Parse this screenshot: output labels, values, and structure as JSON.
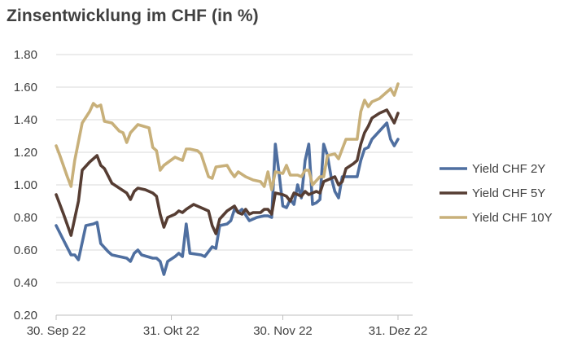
{
  "chart_data": {
    "type": "line",
    "title": "Zinsentwicklung im CHF (in %)",
    "xlabel": "",
    "ylabel": "",
    "x_ticks": [
      "30. Sep 22",
      "31. Okt 22",
      "30. Nov 22",
      "31. Dez 22"
    ],
    "y_ticks": [
      "0.20",
      "0.40",
      "0.60",
      "0.80",
      "1.00",
      "1.20",
      "1.40",
      "1.60",
      "1.80"
    ],
    "ylim": [
      0.2,
      1.8
    ],
    "xlim": [
      "2022-09-30",
      "2022-12-31"
    ],
    "grid": "horizontal",
    "legend_position": "right",
    "series": [
      {
        "name": "Yield CHF 2Y",
        "color": "#4f6fa0",
        "points": [
          [
            "2022-09-30",
            0.75
          ],
          [
            "2022-10-02",
            0.66
          ],
          [
            "2022-10-04",
            0.57
          ],
          [
            "2022-10-05",
            0.57
          ],
          [
            "2022-10-06",
            0.54
          ],
          [
            "2022-10-08",
            0.75
          ],
          [
            "2022-10-10",
            0.76
          ],
          [
            "2022-10-11",
            0.77
          ],
          [
            "2022-10-12",
            0.64
          ],
          [
            "2022-10-14",
            0.59
          ],
          [
            "2022-10-15",
            0.57
          ],
          [
            "2022-10-17",
            0.56
          ],
          [
            "2022-10-19",
            0.55
          ],
          [
            "2022-10-20",
            0.53
          ],
          [
            "2022-10-21",
            0.58
          ],
          [
            "2022-10-22",
            0.6
          ],
          [
            "2022-10-23",
            0.57
          ],
          [
            "2022-10-26",
            0.55
          ],
          [
            "2022-10-27",
            0.55
          ],
          [
            "2022-10-28",
            0.53
          ],
          [
            "2022-10-29",
            0.45
          ],
          [
            "2022-10-30",
            0.53
          ],
          [
            "2022-11-01",
            0.56
          ],
          [
            "2022-11-02",
            0.58
          ],
          [
            "2022-11-03",
            0.56
          ],
          [
            "2022-11-04",
            0.76
          ],
          [
            "2022-11-05",
            0.58
          ],
          [
            "2022-11-08",
            0.57
          ],
          [
            "2022-11-09",
            0.56
          ],
          [
            "2022-11-11",
            0.62
          ],
          [
            "2022-11-12",
            0.61
          ],
          [
            "2022-11-13",
            0.75
          ],
          [
            "2022-11-15",
            0.76
          ],
          [
            "2022-11-16",
            0.78
          ],
          [
            "2022-11-17",
            0.85
          ],
          [
            "2022-11-18",
            0.83
          ],
          [
            "2022-11-19",
            0.85
          ],
          [
            "2022-11-21",
            0.78
          ],
          [
            "2022-11-23",
            0.8
          ],
          [
            "2022-11-25",
            0.81
          ],
          [
            "2022-11-26",
            0.81
          ],
          [
            "2022-11-27",
            0.8
          ],
          [
            "2022-11-28",
            1.25
          ],
          [
            "2022-11-29",
            1.07
          ],
          [
            "2022-11-30",
            0.87
          ],
          [
            "2022-12-01",
            0.86
          ],
          [
            "2022-12-02",
            0.91
          ],
          [
            "2022-12-03",
            0.88
          ],
          [
            "2022-12-04",
            1.0
          ],
          [
            "2022-12-05",
            0.92
          ],
          [
            "2022-12-06",
            1.15
          ],
          [
            "2022-12-07",
            1.25
          ],
          [
            "2022-12-08",
            0.88
          ],
          [
            "2022-12-09",
            0.89
          ],
          [
            "2022-12-10",
            0.91
          ],
          [
            "2022-12-11",
            1.25
          ],
          [
            "2022-12-12",
            1.18
          ],
          [
            "2022-12-13",
            1.05
          ],
          [
            "2022-12-14",
            0.96
          ],
          [
            "2022-12-15",
            0.92
          ],
          [
            "2022-12-16",
            1.05
          ],
          [
            "2022-12-17",
            1.05
          ],
          [
            "2022-12-19",
            1.05
          ],
          [
            "2022-12-20",
            1.05
          ],
          [
            "2022-12-21",
            1.15
          ],
          [
            "2022-12-22",
            1.22
          ],
          [
            "2022-12-23",
            1.23
          ],
          [
            "2022-12-24",
            1.28
          ],
          [
            "2022-12-26",
            1.33
          ],
          [
            "2022-12-28",
            1.38
          ],
          [
            "2022-12-29",
            1.28
          ],
          [
            "2022-12-30",
            1.24
          ],
          [
            "2022-12-31",
            1.28
          ]
        ]
      },
      {
        "name": "Yield CHF 5Y",
        "color": "#563d33",
        "points": [
          [
            "2022-09-30",
            0.94
          ],
          [
            "2022-10-02",
            0.82
          ],
          [
            "2022-10-04",
            0.69
          ],
          [
            "2022-10-06",
            0.9
          ],
          [
            "2022-10-07",
            1.09
          ],
          [
            "2022-10-09",
            1.14
          ],
          [
            "2022-10-11",
            1.18
          ],
          [
            "2022-10-12",
            1.12
          ],
          [
            "2022-10-13",
            1.1
          ],
          [
            "2022-10-15",
            1.01
          ],
          [
            "2022-10-17",
            0.98
          ],
          [
            "2022-10-19",
            0.95
          ],
          [
            "2022-10-20",
            0.91
          ],
          [
            "2022-10-21",
            0.96
          ],
          [
            "2022-10-22",
            0.98
          ],
          [
            "2022-10-24",
            0.97
          ],
          [
            "2022-10-26",
            0.95
          ],
          [
            "2022-10-27",
            0.93
          ],
          [
            "2022-10-28",
            0.82
          ],
          [
            "2022-10-29",
            0.74
          ],
          [
            "2022-10-30",
            0.8
          ],
          [
            "2022-11-01",
            0.82
          ],
          [
            "2022-11-02",
            0.84
          ],
          [
            "2022-11-03",
            0.83
          ],
          [
            "2022-11-04",
            0.85
          ],
          [
            "2022-11-06",
            0.88
          ],
          [
            "2022-11-08",
            0.86
          ],
          [
            "2022-11-10",
            0.84
          ],
          [
            "2022-11-11",
            0.75
          ],
          [
            "2022-11-12",
            0.7
          ],
          [
            "2022-11-13",
            0.79
          ],
          [
            "2022-11-15",
            0.84
          ],
          [
            "2022-11-17",
            0.87
          ],
          [
            "2022-11-18",
            0.83
          ],
          [
            "2022-11-19",
            0.82
          ],
          [
            "2022-11-20",
            0.85
          ],
          [
            "2022-11-21",
            0.82
          ],
          [
            "2022-11-22",
            0.83
          ],
          [
            "2022-11-24",
            0.83
          ],
          [
            "2022-11-25",
            0.85
          ],
          [
            "2022-11-26",
            0.85
          ],
          [
            "2022-11-27",
            0.82
          ],
          [
            "2022-11-28",
            0.95
          ],
          [
            "2022-11-30",
            0.94
          ],
          [
            "2022-12-01",
            0.93
          ],
          [
            "2022-12-02",
            0.9
          ],
          [
            "2022-12-03",
            0.95
          ],
          [
            "2022-12-05",
            0.93
          ],
          [
            "2022-12-06",
            0.96
          ],
          [
            "2022-12-07",
            0.94
          ],
          [
            "2022-12-09",
            0.96
          ],
          [
            "2022-12-10",
            0.95
          ],
          [
            "2022-12-11",
            1.02
          ],
          [
            "2022-12-12",
            1.03
          ],
          [
            "2022-12-14",
            1.05
          ],
          [
            "2022-12-15",
            1.0
          ],
          [
            "2022-12-16",
            1.02
          ],
          [
            "2022-12-17",
            1.1
          ],
          [
            "2022-12-19",
            1.13
          ],
          [
            "2022-12-20",
            1.15
          ],
          [
            "2022-12-21",
            1.25
          ],
          [
            "2022-12-22",
            1.32
          ],
          [
            "2022-12-23",
            1.36
          ],
          [
            "2022-12-24",
            1.41
          ],
          [
            "2022-12-26",
            1.44
          ],
          [
            "2022-12-28",
            1.46
          ],
          [
            "2022-12-29",
            1.42
          ],
          [
            "2022-12-30",
            1.38
          ],
          [
            "2022-12-31",
            1.44
          ]
        ]
      },
      {
        "name": "Yield CHF 10Y",
        "color": "#c8b07a",
        "points": [
          [
            "2022-09-30",
            1.24
          ],
          [
            "2022-10-01",
            1.18
          ],
          [
            "2022-10-03",
            1.05
          ],
          [
            "2022-10-04",
            0.99
          ],
          [
            "2022-10-05",
            1.15
          ],
          [
            "2022-10-07",
            1.38
          ],
          [
            "2022-10-09",
            1.45
          ],
          [
            "2022-10-10",
            1.5
          ],
          [
            "2022-10-11",
            1.48
          ],
          [
            "2022-10-12",
            1.49
          ],
          [
            "2022-10-13",
            1.39
          ],
          [
            "2022-10-15",
            1.38
          ],
          [
            "2022-10-17",
            1.33
          ],
          [
            "2022-10-18",
            1.32
          ],
          [
            "2022-10-19",
            1.26
          ],
          [
            "2022-10-20",
            1.32
          ],
          [
            "2022-10-22",
            1.37
          ],
          [
            "2022-10-25",
            1.35
          ],
          [
            "2022-10-26",
            1.23
          ],
          [
            "2022-10-27",
            1.21
          ],
          [
            "2022-10-28",
            1.09
          ],
          [
            "2022-10-29",
            1.12
          ],
          [
            "2022-11-01",
            1.17
          ],
          [
            "2022-11-03",
            1.15
          ],
          [
            "2022-11-04",
            1.22
          ],
          [
            "2022-11-05",
            1.22
          ],
          [
            "2022-11-07",
            1.21
          ],
          [
            "2022-11-08",
            1.19
          ],
          [
            "2022-11-10",
            1.05
          ],
          [
            "2022-11-11",
            1.04
          ],
          [
            "2022-11-12",
            1.11
          ],
          [
            "2022-11-15",
            1.12
          ],
          [
            "2022-11-16",
            1.08
          ],
          [
            "2022-11-17",
            1.05
          ],
          [
            "2022-11-18",
            1.08
          ],
          [
            "2022-11-20",
            1.05
          ],
          [
            "2022-11-22",
            1.03
          ],
          [
            "2022-11-24",
            1.02
          ],
          [
            "2022-11-25",
            0.99
          ],
          [
            "2022-11-26",
            1.08
          ],
          [
            "2022-11-27",
            0.97
          ],
          [
            "2022-11-28",
            1.08
          ],
          [
            "2022-11-30",
            1.07
          ],
          [
            "2022-12-01",
            1.12
          ],
          [
            "2022-12-02",
            1.06
          ],
          [
            "2022-12-04",
            1.06
          ],
          [
            "2022-12-05",
            1.05
          ],
          [
            "2022-12-06",
            1.09
          ],
          [
            "2022-12-07",
            1.09
          ],
          [
            "2022-12-08",
            1.0
          ],
          [
            "2022-12-10",
            1.05
          ],
          [
            "2022-12-11",
            1.05
          ],
          [
            "2022-12-12",
            1.18
          ],
          [
            "2022-12-14",
            1.19
          ],
          [
            "2022-12-15",
            1.16
          ],
          [
            "2022-12-16",
            1.22
          ],
          [
            "2022-12-17",
            1.28
          ],
          [
            "2022-12-20",
            1.28
          ],
          [
            "2022-12-21",
            1.45
          ],
          [
            "2022-12-22",
            1.52
          ],
          [
            "2022-12-23",
            1.48
          ],
          [
            "2022-12-24",
            1.51
          ],
          [
            "2022-12-26",
            1.53
          ],
          [
            "2022-12-28",
            1.57
          ],
          [
            "2022-12-29",
            1.59
          ],
          [
            "2022-12-30",
            1.55
          ],
          [
            "2022-12-31",
            1.62
          ]
        ]
      }
    ]
  }
}
